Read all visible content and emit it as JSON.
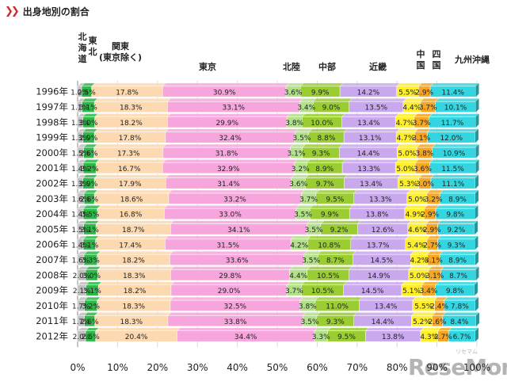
{
  "header": {
    "title": "出身地別の割合"
  },
  "watermark": {
    "text": "ReseMom",
    "sub": "リセマム"
  },
  "chart_data": {
    "type": "bar",
    "orientation": "horizontal",
    "stacked": true,
    "title": "出身地別の割合",
    "xlim": [
      0,
      100
    ],
    "x_ticks": [
      "0%",
      "10%",
      "20%",
      "30%",
      "40%",
      "50%",
      "60%",
      "70%",
      "80%",
      "90%",
      "100%"
    ],
    "categories": [
      "1996年",
      "1997年",
      "1998年",
      "1999年",
      "2000年",
      "2001年",
      "2002年",
      "2003年",
      "2004年",
      "2005年",
      "2006年",
      "2007年",
      "2008年",
      "2009年",
      "2010年",
      "2011年",
      "2012年"
    ],
    "series": [
      {
        "name": "北海道",
        "label_lines": [
          "北",
          "海",
          "道"
        ],
        "color": "#bfbfbf",
        "values": [
          1.0,
          1.1,
          1.3,
          1.3,
          1.5,
          1.4,
          1.3,
          1.6,
          1.4,
          1.5,
          1.4,
          1.6,
          2.0,
          2.1,
          1.7,
          1.7,
          2.0
        ],
        "labels": [
          "1.0%",
          "1.1%",
          "1.3%",
          "1.3%",
          "1.5%",
          "1.4%",
          "1.3%",
          "1.6%",
          "1.4%",
          "1.5%",
          "1.4%",
          "1.6%",
          "2.0%",
          "2.1%",
          "1.7%",
          "1.7%",
          "2.0%"
        ]
      },
      {
        "name": "東北",
        "label_lines": [
          "東",
          "北"
        ],
        "color": "#2fb84a",
        "values": [
          2.5,
          3.1,
          3.0,
          2.9,
          2.6,
          3.2,
          2.9,
          2.6,
          3.5,
          3.1,
          3.1,
          3.3,
          3.0,
          3.1,
          3.2,
          2.6,
          2.5
        ],
        "labels": [
          "2.5%",
          "3.1%",
          "3.0%",
          "2.9%",
          "2.6%",
          "3.2%",
          "2.9%",
          "2.6%",
          "3.5%",
          "3.1%",
          "3.1%",
          "3.3%",
          "3.0%",
          "3.1%",
          "3.2%",
          "2.6%",
          "2.5%"
        ]
      },
      {
        "name": "関東(東京除く)",
        "label_lines": [
          "関東",
          "(東京除く)"
        ],
        "color": "#fcd9b0",
        "values": [
          17.8,
          18.3,
          18.2,
          17.8,
          17.3,
          16.7,
          17.9,
          18.6,
          16.8,
          18.7,
          17.4,
          18.2,
          18.3,
          18.2,
          18.3,
          18.3,
          20.4
        ],
        "labels": [
          "17.8%",
          "18.3%",
          "18.2%",
          "17.8%",
          "17.3%",
          "16.7%",
          "17.9%",
          "18.6%",
          "16.8%",
          "18.7%",
          "17.4%",
          "18.2%",
          "18.3%",
          "18.2%",
          "18.3%",
          "18.3%",
          "20.4%"
        ]
      },
      {
        "name": "東京",
        "label_lines": [
          "東京"
        ],
        "color": "#f6a6dc",
        "values": [
          30.9,
          33.1,
          29.9,
          32.4,
          31.8,
          32.9,
          31.4,
          33.2,
          33.0,
          34.1,
          31.5,
          33.6,
          29.8,
          29.0,
          32.5,
          33.8,
          34.4
        ],
        "labels": [
          "30.9%",
          "33.1%",
          "29.9%",
          "32.4%",
          "31.8%",
          "32.9%",
          "31.4%",
          "33.2%",
          "33.0%",
          "34.1%",
          "31.5%",
          "33.6%",
          "29.8%",
          "29.0%",
          "32.5%",
          "33.8%",
          "34.4%"
        ]
      },
      {
        "name": "北陸",
        "label_lines": [
          "北陸"
        ],
        "color": "#b3e08a",
        "values": [
          3.6,
          3.4,
          3.8,
          3.5,
          3.1,
          3.2,
          3.6,
          3.7,
          3.5,
          3.5,
          4.2,
          3.5,
          4.4,
          3.7,
          3.8,
          3.5,
          3.3
        ],
        "labels": [
          "3.6%",
          "3.4%",
          "3.8%",
          "3.5%",
          "3.1%",
          "3.2%",
          "3.6%",
          "3.7%",
          "3.5%",
          "3.5%",
          "4.2%",
          "3.5%",
          "4.4%",
          "3.7%",
          "3.8%",
          "3.5%",
          "3.3%"
        ]
      },
      {
        "name": "中部",
        "label_lines": [
          "中部"
        ],
        "color": "#9acd32",
        "values": [
          9.9,
          9.0,
          10.0,
          8.8,
          9.3,
          8.9,
          9.7,
          9.5,
          9.9,
          9.2,
          10.8,
          8.7,
          10.5,
          10.5,
          11.0,
          9.3,
          9.5
        ],
        "labels": [
          "9.9%",
          "9.0%",
          "10.0%",
          "8.8%",
          "9.3%",
          "8.9%",
          "9.7%",
          "9.5%",
          "9.9%",
          "9.2%",
          "10.8%",
          "8.7%",
          "10.5%",
          "10.5%",
          "11.0%",
          "9.3%",
          "9.5%"
        ]
      },
      {
        "name": "近畿",
        "label_lines": [
          "近畿"
        ],
        "color": "#c9a8ee",
        "values": [
          14.2,
          13.5,
          13.4,
          13.1,
          14.4,
          13.3,
          13.4,
          13.3,
          13.8,
          12.6,
          13.7,
          14.5,
          14.9,
          14.5,
          13.4,
          14.4,
          13.8
        ],
        "labels": [
          "14.2%",
          "13.5%",
          "13.4%",
          "13.1%",
          "14.4%",
          "13.3%",
          "13.4%",
          "13.3%",
          "13.8%",
          "12.6%",
          "13.7%",
          "14.5%",
          "14.9%",
          "14.5%",
          "13.4%",
          "14.4%",
          "13.8%"
        ]
      },
      {
        "name": "中国",
        "label_lines": [
          "中",
          "国"
        ],
        "color": "#ffee2a",
        "values": [
          5.5,
          4.4,
          4.7,
          4.7,
          5.0,
          5.0,
          5.3,
          5.0,
          4.9,
          4.6,
          5.4,
          4.2,
          5.0,
          5.1,
          5.5,
          5.2,
          4.3
        ],
        "labels": [
          "5.5%",
          "4.4%",
          "4.7%",
          "4.7%",
          "5.0%",
          "5.0%",
          "5.3%",
          "5.0%",
          "4.9%",
          "4.6%",
          "5.4%",
          "4.2%",
          "5.0%",
          "5.1%",
          "5.5%",
          "5.2%",
          "4.3%"
        ]
      },
      {
        "name": "四国",
        "label_lines": [
          "四",
          "国"
        ],
        "color": "#f5a623",
        "values": [
          2.9,
          3.7,
          3.7,
          3.1,
          3.8,
          3.6,
          3.0,
          3.2,
          2.9,
          2.9,
          2.7,
          3.1,
          3.1,
          3.4,
          2.4,
          2.6,
          2.7
        ],
        "labels": [
          "2.9%",
          "3.7%",
          "3.7%",
          "3.1%",
          "3.8%",
          "3.6%",
          "3.0%",
          "3.2%",
          "2.9%",
          "2.9%",
          "2.7%",
          "3.1%",
          "3.1%",
          "3.4%",
          "2.4%",
          "2.6%",
          "2.7%"
        ]
      },
      {
        "name": "九州沖縄",
        "label_lines": [
          "九州沖縄"
        ],
        "color": "#33d6e0",
        "values": [
          11.4,
          10.1,
          11.7,
          12.0,
          10.9,
          11.5,
          11.1,
          8.9,
          9.8,
          9.2,
          9.3,
          8.9,
          8.7,
          9.8,
          7.8,
          8.4,
          6.7
        ],
        "labels": [
          "11.4%",
          "10.1%",
          "11.7%",
          "12.0%",
          "10.9%",
          "11.5%",
          "11.1%",
          "8.9%",
          "9.8%",
          "9.2%",
          "9.3%",
          "8.9%",
          "8.7%",
          "9.8%",
          "7.8%",
          "8.4%",
          "6.7%"
        ]
      }
    ]
  }
}
